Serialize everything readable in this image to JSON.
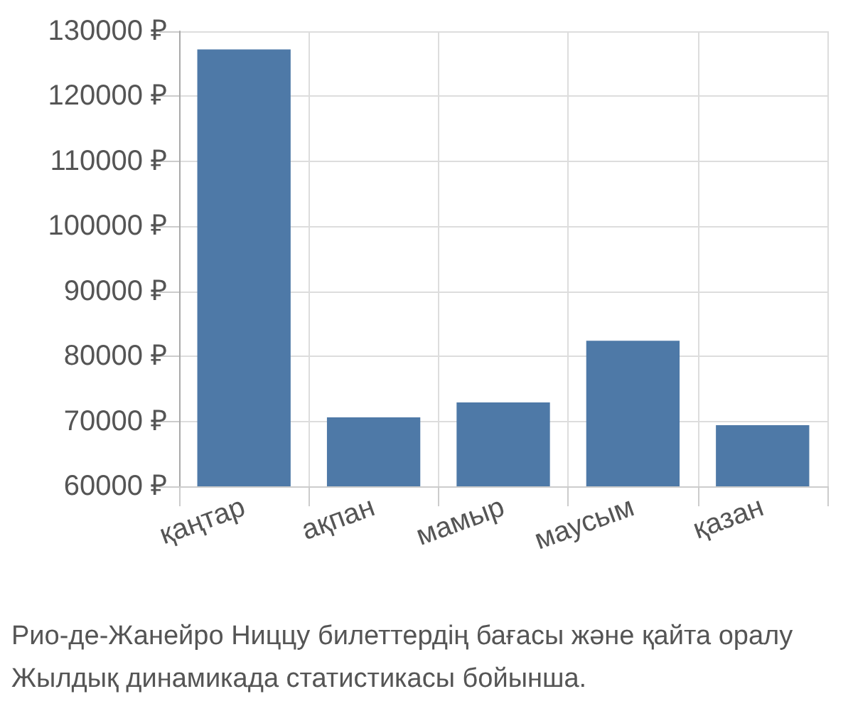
{
  "chart_data": {
    "type": "bar",
    "categories": [
      "қаңтар",
      "ақпан",
      "мамыр",
      "маусым",
      "қазан"
    ],
    "values": [
      127200,
      70600,
      72900,
      82400,
      69400
    ],
    "color": "#4e79a7",
    "ylim": [
      60000,
      130000
    ],
    "yticks": [
      {
        "value": 60000,
        "label": "60000 ₽"
      },
      {
        "value": 70000,
        "label": "70000 ₽"
      },
      {
        "value": 80000,
        "label": "80000 ₽"
      },
      {
        "value": 90000,
        "label": "90000 ₽"
      },
      {
        "value": 100000,
        "label": "100000 ₽"
      },
      {
        "value": 110000,
        "label": "110000 ₽"
      },
      {
        "value": 120000,
        "label": "120000 ₽"
      },
      {
        "value": 130000,
        "label": "130000 ₽"
      }
    ],
    "grid": true,
    "annotations": [
      "Рио-де-Жанейро Ниццу билеттердің бағасы және қайта оралу",
      "Жылдық динамикада статистикасы бойынша."
    ]
  }
}
